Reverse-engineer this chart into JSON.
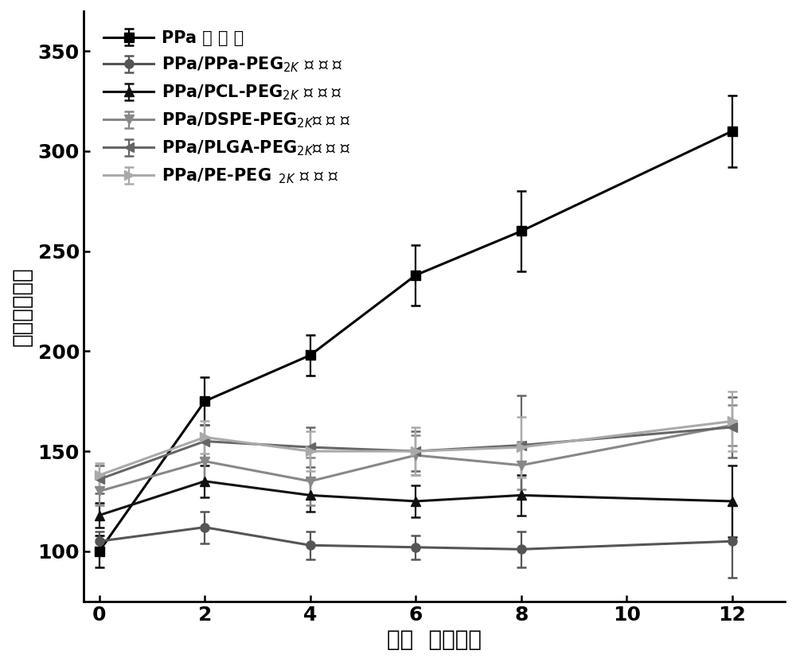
{
  "x": [
    0,
    2,
    4,
    6,
    8,
    12
  ],
  "series": [
    {
      "label_main": "PPa 纳 米 粒",
      "label_sub": "",
      "color": "#000000",
      "marker": "s",
      "markersize": 8,
      "linewidth": 2.2,
      "y": [
        100,
        175,
        198,
        238,
        260,
        310
      ],
      "yerr": [
        8,
        12,
        10,
        15,
        20,
        18
      ]
    },
    {
      "label_main": "PPa/PPa-PEG",
      "label_sub": "2K",
      "label_end": " 纳 米 粒",
      "color": "#555555",
      "marker": "o",
      "markersize": 8,
      "linewidth": 2.2,
      "y": [
        105,
        112,
        103,
        102,
        101,
        105
      ],
      "yerr": [
        5,
        8,
        7,
        6,
        9,
        18
      ]
    },
    {
      "label_main": "PPa/PCL-PEG",
      "label_sub": "2K",
      "label_end": " 纳 米 粒",
      "color": "#111111",
      "marker": "^",
      "markersize": 8,
      "linewidth": 2.2,
      "y": [
        118,
        135,
        128,
        125,
        128,
        125
      ],
      "yerr": [
        6,
        8,
        8,
        8,
        10,
        18
      ]
    },
    {
      "label_main": "PPa/DSPE-PEG",
      "label_sub": "2K",
      "label_end": "纳 米 粒",
      "color": "#888888",
      "marker": "v",
      "markersize": 8,
      "linewidth": 2.2,
      "y": [
        130,
        145,
        135,
        148,
        143,
        163
      ],
      "yerr": [
        7,
        10,
        12,
        10,
        12,
        10
      ]
    },
    {
      "label_main": "PPa/PLGA-PEG",
      "label_sub": "2K",
      "label_end": "纳 米 粒",
      "color": "#666666",
      "marker": "<",
      "markersize": 8,
      "linewidth": 2.2,
      "y": [
        136,
        155,
        152,
        150,
        153,
        162
      ],
      "yerr": [
        7,
        8,
        10,
        10,
        25,
        15
      ]
    },
    {
      "label_main": "PPa/PE-PEG",
      "label_sub": "2K",
      "label_end": " 纳 米 粒",
      "color": "#aaaaaa",
      "marker": ">",
      "markersize": 8,
      "linewidth": 2.2,
      "y": [
        138,
        157,
        150,
        150,
        152,
        165
      ],
      "yerr": [
        6,
        8,
        10,
        12,
        15,
        15
      ]
    }
  ],
  "xlabel": "时间  （小时）",
  "ylabel": "粒径（纳米）",
  "xlim": [
    -0.3,
    13
  ],
  "ylim": [
    75,
    370
  ],
  "xticks": [
    0,
    2,
    4,
    6,
    8,
    10,
    12
  ],
  "yticks": [
    100,
    150,
    200,
    250,
    300,
    350
  ],
  "fontsize_tick": 18,
  "fontsize_label": 20,
  "fontsize_legend": 15,
  "background_color": "#ffffff"
}
